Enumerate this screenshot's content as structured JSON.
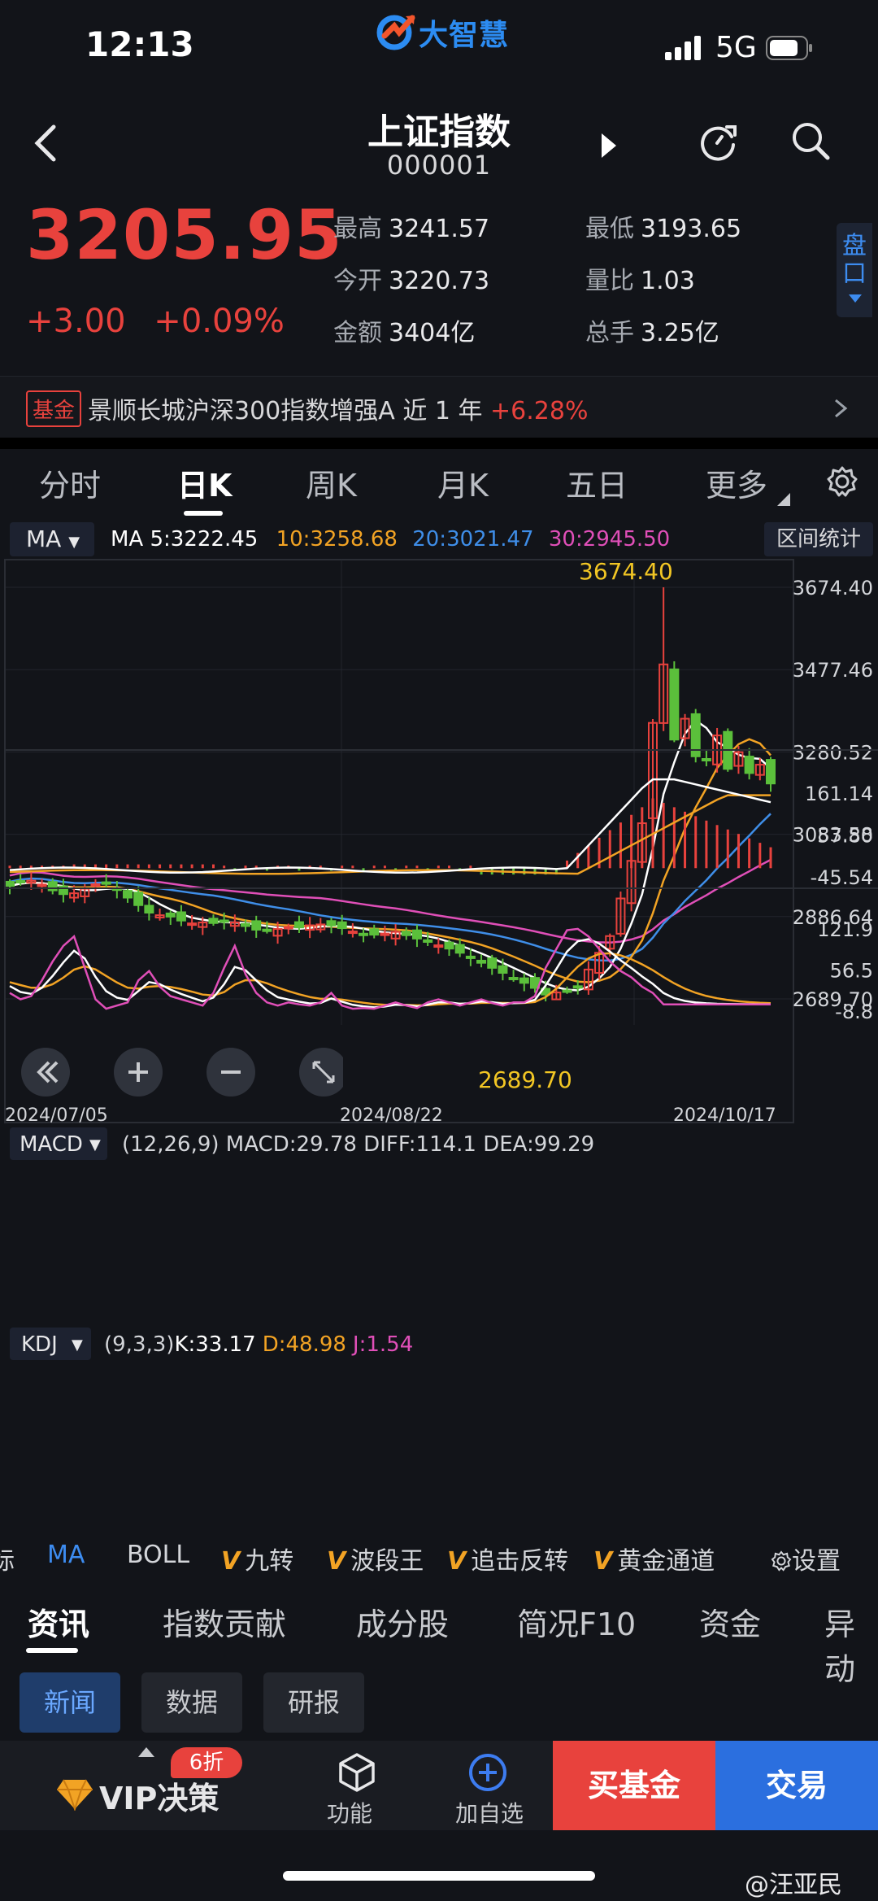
{
  "status": {
    "time": "12:13",
    "network": "5G"
  },
  "logo": {
    "text": "大智慧"
  },
  "header": {
    "title": "上证指数",
    "code": "000001"
  },
  "quote": {
    "price": "3205.95",
    "change": "+3.00",
    "change_pct": "+0.09%",
    "stats": [
      {
        "label": "最高",
        "value": "3241.57"
      },
      {
        "label": "最低",
        "value": "3193.65"
      },
      {
        "label": "今开",
        "value": "3220.73"
      },
      {
        "label": "量比",
        "value": "1.03"
      },
      {
        "label": "金额",
        "value": "3404亿"
      },
      {
        "label": "总手",
        "value": "3.25亿"
      }
    ],
    "pankou": "盘口"
  },
  "banner": {
    "tag": "基金",
    "text": "景顺长城沪深300指数增强A  近 1 年 ",
    "return": "+6.28%"
  },
  "period_tabs": [
    "分时",
    "日K",
    "周K",
    "月K",
    "五日",
    "更多"
  ],
  "ma": {
    "selector": "MA",
    "ma5": "MA 5:3222.45",
    "ma10": "10:3258.68",
    "ma20": "20:3021.47",
    "ma30": "30:2945.50",
    "range_button": "区间统计"
  },
  "colors": {
    "up": "#e8423d",
    "down": "#5bbf3b",
    "ma5": "#ffffff",
    "ma10": "#f2a324",
    "ma20": "#3f8ee8",
    "ma30": "#e04fb8"
  },
  "chart_data": [
    {
      "type": "candlestick",
      "title": "",
      "y_ticks": [
        "3674.40",
        "3477.46",
        "3280.52",
        "3083.58",
        "2886.64",
        "2689.70"
      ],
      "x_ticks": [
        "2024/07/05",
        "2024/08/22",
        "2024/10/17"
      ],
      "annotations": {
        "high": "3674.40",
        "low": "2689.70"
      },
      "series": [
        "MA5",
        "MA10",
        "MA20",
        "MA30"
      ]
    },
    {
      "type": "bar",
      "title": "",
      "header": "(12,26,9) MACD:29.78 DIFF:114.1 DEA:99.29",
      "selector": "MACD",
      "y_ticks": [
        "161.14",
        "57.80",
        "-45.54"
      ],
      "values": {
        "macd": 29.78,
        "diff": 114.1,
        "dea": 99.29
      }
    },
    {
      "type": "line",
      "title": "",
      "selector": "KDJ",
      "params": "(9,3,3)",
      "k": "K:33.17",
      "d": "D:48.98",
      "j": "J:1.54",
      "y_ticks": [
        "121.9",
        "56.5",
        "-8.8"
      ]
    }
  ],
  "chart_buttons": [
    "rewind-button",
    "zoom-in-button",
    "zoom-out-button",
    "fullscreen-button"
  ],
  "indicators": {
    "items": [
      "标",
      "MA",
      "BOLL",
      "九转",
      "波段王",
      "追击反转",
      "黄金通道"
    ],
    "settings": "设置"
  },
  "news_tabs": [
    "资讯",
    "指数贡献",
    "成分股",
    "简况F10",
    "资金",
    "异动"
  ],
  "news_chips": [
    "新闻",
    "数据",
    "研报"
  ],
  "bottom": {
    "vip_badge": "6折",
    "vip_label": "VIP决策",
    "function_label": "功能",
    "add_label": "加自选",
    "buy_label": "买基金",
    "trade_label": "交易"
  },
  "watermark": "@汪亚民"
}
